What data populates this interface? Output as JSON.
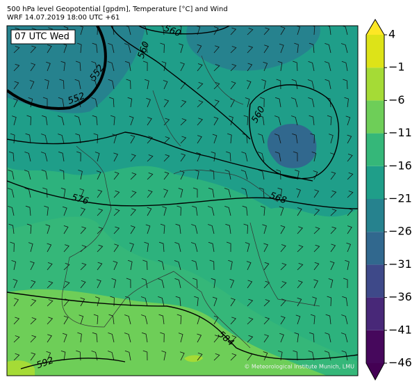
{
  "header": {
    "line1": "500 hPa level Geopotential [gpdm], Temperature [°C] and Wind",
    "line2": "WRF 14.07.2019 18:00 UTC +61"
  },
  "map": {
    "time_label": "07 UTC Wed",
    "contour_labels": [
      "560",
      "560",
      "552",
      "552",
      "560",
      "576",
      "568",
      "584",
      "592"
    ],
    "credit": "© Meteorological Institute Munich, LMU"
  },
  "colorbar": {
    "ticks": [
      {
        "value": -46,
        "label": "−46"
      },
      {
        "value": -41,
        "label": "−41"
      },
      {
        "value": -36,
        "label": "−36"
      },
      {
        "value": -31,
        "label": "−31"
      },
      {
        "value": -26,
        "label": "−26"
      },
      {
        "value": -21,
        "label": "−21"
      },
      {
        "value": -16,
        "label": "−16"
      },
      {
        "value": -11,
        "label": "−11"
      },
      {
        "value": -6,
        "label": "−6"
      },
      {
        "value": -1,
        "label": "−1"
      },
      4
    ],
    "colors": [
      "#46085c",
      "#482878",
      "#3e4989",
      "#31688e",
      "#26828e",
      "#1f9e89",
      "#35b779",
      "#6ece58",
      "#a5db36",
      "#dde318"
    ],
    "extend_low_color": "#440154",
    "extend_high_color": "#fde725"
  }
}
